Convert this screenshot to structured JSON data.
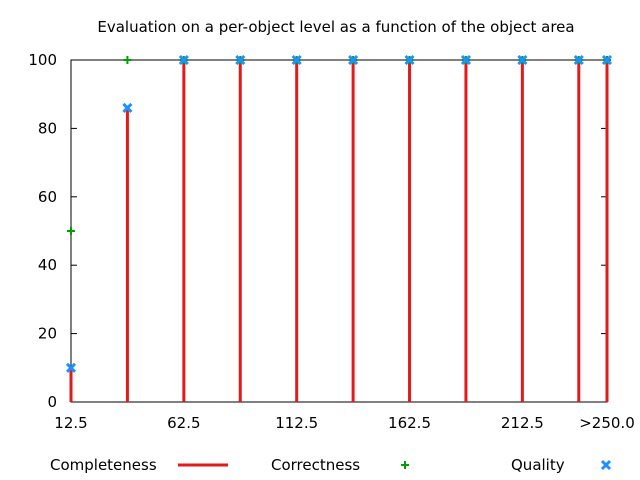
{
  "chart_data": {
    "type": "line",
    "title": "Evaluation on a per-object level as a function of the object area",
    "xlabel": "",
    "ylabel": "",
    "x": [
      12.5,
      37.5,
      62.5,
      87.5,
      112.5,
      137.5,
      162.5,
      187.5,
      212.5,
      237.5,
      250
    ],
    "x_tick_labels": [
      "12.5",
      "62.5",
      "112.5",
      "162.5",
      "212.5",
      ">250.0"
    ],
    "x_tick_values": [
      12.5,
      62.5,
      112.5,
      162.5,
      212.5,
      250
    ],
    "xlim": [
      12.5,
      250
    ],
    "ylim": [
      0,
      100
    ],
    "y_ticks": [
      0,
      20,
      40,
      60,
      80,
      100
    ],
    "grid": false,
    "legend_position": "bottom",
    "series": [
      {
        "name": "Completeness",
        "style": "impulses",
        "color": "#e41a1a",
        "values": [
          10,
          86,
          100,
          100,
          100,
          100,
          100,
          100,
          100,
          100,
          100
        ]
      },
      {
        "name": "Correctness",
        "style": "points-plus",
        "color": "#00a000",
        "values": [
          50,
          100,
          100,
          100,
          100,
          100,
          100,
          100,
          100,
          100,
          100
        ]
      },
      {
        "name": "Quality",
        "style": "points-cross",
        "color": "#1e90ff",
        "values": [
          10,
          86,
          100,
          100,
          100,
          100,
          100,
          100,
          100,
          100,
          100
        ]
      }
    ]
  }
}
